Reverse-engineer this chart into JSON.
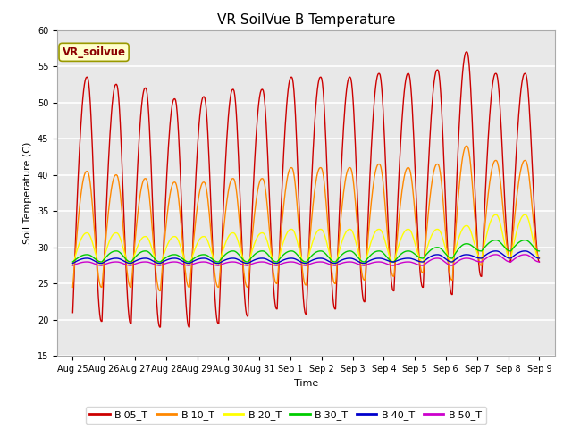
{
  "title": "VR SoilVue B Temperature",
  "xlabel": "Time",
  "ylabel": "Soil Temperature (C)",
  "ylim": [
    15,
    60
  ],
  "yticks": [
    15,
    20,
    25,
    30,
    35,
    40,
    45,
    50,
    55,
    60
  ],
  "x_labels": [
    "Aug 25",
    "Aug 26",
    "Aug 27",
    "Aug 28",
    "Aug 29",
    "Aug 30",
    "Aug 31",
    "Sep 1",
    "Sep 2",
    "Sep 3",
    "Sep 4",
    "Sep 5",
    "Sep 6",
    "Sep 7",
    "Sep 8",
    "Sep 9"
  ],
  "annotation_text": "VR_soilvue",
  "series": {
    "B-05_T": {
      "color": "#cc0000",
      "peaks": [
        53.5,
        52.5,
        52.0,
        50.5,
        50.8,
        51.8,
        51.8,
        53.5,
        53.5,
        53.5,
        54.0,
        54.0,
        54.5,
        57.0,
        54.0,
        54.0
      ],
      "valleys": [
        21.0,
        19.8,
        19.5,
        19.0,
        19.0,
        19.5,
        20.5,
        21.5,
        20.8,
        21.5,
        22.5,
        24.0,
        24.5,
        23.5,
        26.0,
        28.0
      ]
    },
    "B-10_T": {
      "color": "#ff8800",
      "peaks": [
        40.5,
        40.0,
        39.5,
        39.0,
        39.0,
        39.5,
        39.5,
        41.0,
        41.0,
        41.0,
        41.5,
        41.0,
        41.5,
        44.0,
        42.0,
        42.0
      ],
      "valleys": [
        24.5,
        24.5,
        24.5,
        24.0,
        24.5,
        24.5,
        24.5,
        25.0,
        24.8,
        25.0,
        25.5,
        26.0,
        26.5,
        25.5,
        27.5,
        28.5
      ]
    },
    "B-20_T": {
      "color": "#ffff00",
      "peaks": [
        32.0,
        32.0,
        31.5,
        31.5,
        31.5,
        32.0,
        32.0,
        32.5,
        32.5,
        32.5,
        32.5,
        32.5,
        32.5,
        33.0,
        34.5,
        34.5
      ],
      "valleys": [
        27.5,
        27.5,
        27.5,
        27.5,
        27.5,
        27.5,
        27.5,
        27.5,
        27.5,
        27.5,
        27.5,
        28.0,
        28.0,
        28.0,
        28.5,
        28.5
      ]
    },
    "B-30_T": {
      "color": "#00cc00",
      "peaks": [
        29.0,
        29.5,
        29.5,
        29.0,
        29.0,
        29.5,
        29.5,
        29.5,
        29.5,
        29.5,
        29.5,
        29.5,
        30.0,
        30.5,
        31.0,
        31.0
      ],
      "valleys": [
        28.0,
        28.0,
        28.0,
        28.0,
        28.0,
        28.0,
        28.0,
        28.0,
        28.0,
        28.0,
        28.0,
        28.0,
        28.5,
        28.5,
        29.5,
        29.5
      ]
    },
    "B-40_T": {
      "color": "#0000cc",
      "peaks": [
        28.5,
        28.5,
        28.5,
        28.5,
        28.5,
        28.5,
        28.5,
        28.5,
        28.5,
        28.5,
        28.5,
        28.5,
        29.0,
        29.0,
        29.5,
        29.5
      ],
      "valleys": [
        27.8,
        27.8,
        27.8,
        27.8,
        27.8,
        27.8,
        27.8,
        27.8,
        27.8,
        27.8,
        27.8,
        28.0,
        28.0,
        28.0,
        28.5,
        28.5
      ]
    },
    "B-50_T": {
      "color": "#cc00cc",
      "peaks": [
        28.0,
        28.0,
        28.0,
        28.0,
        28.0,
        28.0,
        28.0,
        28.0,
        28.0,
        28.0,
        28.0,
        28.0,
        28.5,
        28.5,
        29.0,
        29.0
      ],
      "valleys": [
        27.5,
        27.5,
        27.5,
        27.5,
        27.5,
        27.5,
        27.5,
        27.5,
        27.5,
        27.5,
        27.5,
        27.5,
        27.5,
        27.5,
        28.0,
        28.0
      ]
    }
  },
  "plot_bg": "#e8e8e8",
  "fig_bg": "#ffffff",
  "linewidth": 1.0,
  "title_fontsize": 11,
  "axis_label_fontsize": 8,
  "tick_fontsize": 7,
  "legend_fontsize": 8
}
